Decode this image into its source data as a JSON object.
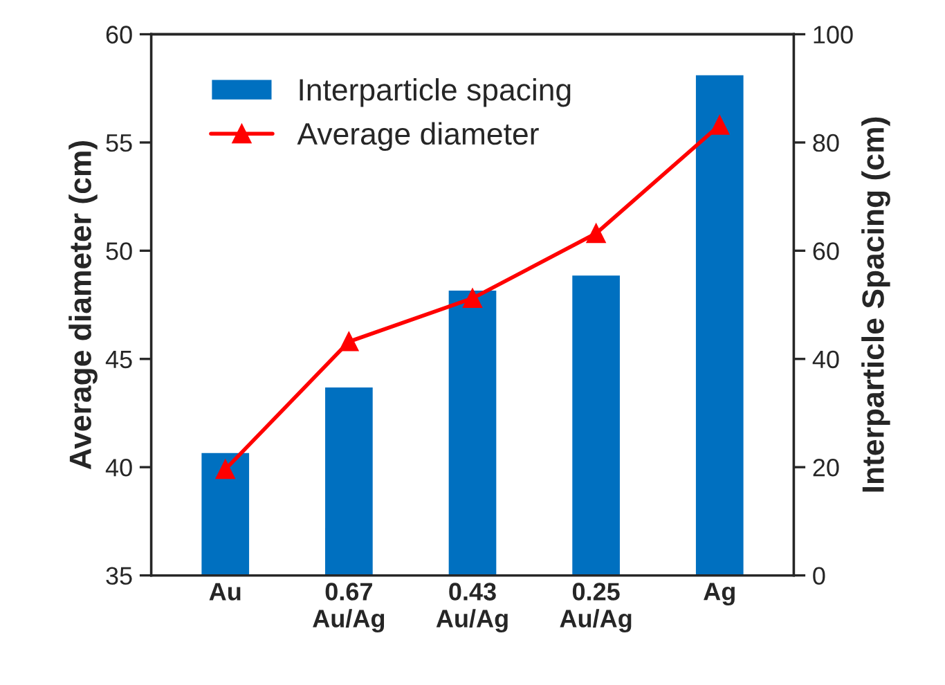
{
  "chart_data": {
    "type": "bar",
    "ylabel": "Average diameter (cm)",
    "y2label": "Interparticle Spacing (cm)",
    "categories": [
      "Au",
      "0.67\nAu/Ag",
      "0.43\nAu/Ag",
      "0.25\nAu/Ag",
      "Ag"
    ],
    "series": [
      {
        "name": "Interparticle spacing",
        "axis": "y2",
        "color": "#0070c0",
        "values": [
          22.8,
          34.9,
          52.8,
          55.6,
          92.6
        ]
      },
      {
        "name": "Average diameter",
        "type": "line",
        "axis": "y",
        "color": "#ff0000",
        "marker": "triangle",
        "values": [
          39.9,
          45.8,
          47.8,
          50.8,
          55.8
        ]
      }
    ],
    "ylim": [
      35,
      60
    ],
    "yticks": [
      35,
      40,
      45,
      50,
      55,
      60
    ],
    "y2lim": [
      0,
      100
    ],
    "y2ticks": [
      0,
      20,
      40,
      60,
      80,
      100
    ],
    "grid": false,
    "legend": "top left"
  }
}
